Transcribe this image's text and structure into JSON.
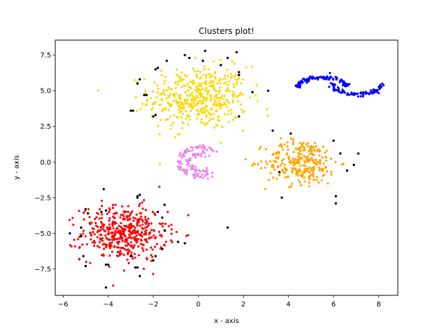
{
  "chart_data": {
    "type": "scatter",
    "title": "Clusters plot!",
    "xlabel": "x - axis",
    "ylabel": "y - axis",
    "xlim": [
      -6.35,
      8.85
    ],
    "ylim": [
      -9.35,
      8.55
    ],
    "xticks": [
      -6,
      -4,
      -2,
      0,
      2,
      4,
      6,
      8
    ],
    "xtick_labels": [
      "−6",
      "−4",
      "−2",
      "0",
      "2",
      "4",
      "6",
      "8"
    ],
    "yticks": [
      -7.5,
      -5.0,
      -2.5,
      0.0,
      2.5,
      5.0,
      7.5
    ],
    "ytick_labels": [
      "−7.5",
      "−5.0",
      "−2.5",
      "0.0",
      "2.5",
      "5.0",
      "7.5"
    ],
    "grid": false,
    "clusters": [
      {
        "shape": "blob",
        "color": "#ffd700",
        "center": [
          0.0,
          4.5
        ],
        "spread": [
          1.1,
          1.1
        ],
        "count": 450
      },
      {
        "shape": "blob",
        "color": "#ff0000",
        "center": [
          -3.3,
          -5.0
        ],
        "spread": [
          0.95,
          0.95
        ],
        "count": 450
      },
      {
        "shape": "blob",
        "color": "#ffa500",
        "center": [
          4.6,
          0.0
        ],
        "spread": [
          0.8,
          0.8
        ],
        "count": 280
      },
      {
        "shape": "moons",
        "color": "#0000ff",
        "center": [
          6.5,
          5.3
        ],
        "count": 200
      },
      {
        "shape": "circle",
        "color": "#ee82ee",
        "center": [
          0.0,
          0.0
        ],
        "count": 130
      }
    ],
    "noise": {
      "color": "#000000",
      "points": [
        [
          -2.6,
          5.8
        ],
        [
          -2.7,
          5.5
        ],
        [
          -2.4,
          4.7
        ],
        [
          -2.3,
          4.7
        ],
        [
          -2.9,
          3.6
        ],
        [
          -3.0,
          3.6
        ],
        [
          -2.0,
          3.2
        ],
        [
          -1.9,
          3.3
        ],
        [
          -1.9,
          6.5
        ],
        [
          -1.8,
          6.6
        ],
        [
          -1.4,
          7.1
        ],
        [
          -0.6,
          7.5
        ],
        [
          -0.4,
          7.3
        ],
        [
          0.2,
          7.1
        ],
        [
          0.3,
          7.8
        ],
        [
          1.0,
          6.8
        ],
        [
          1.3,
          7.3
        ],
        [
          1.7,
          7.7
        ],
        [
          1.8,
          6.3
        ],
        [
          1.8,
          6.1
        ],
        [
          1.8,
          3.2
        ],
        [
          2.4,
          4.9
        ],
        [
          3.1,
          5.0
        ],
        [
          3.3,
          2.2
        ],
        [
          4.1,
          2.0
        ],
        [
          6.0,
          1.5
        ],
        [
          6.3,
          0.6
        ],
        [
          6.6,
          -0.6
        ],
        [
          7.1,
          0.6
        ],
        [
          6.1,
          -2.4
        ],
        [
          6.1,
          -2.9
        ],
        [
          3.7,
          -2.5
        ],
        [
          -4.2,
          -1.9
        ],
        [
          -4.3,
          -3.5
        ],
        [
          -4.1,
          -3.4
        ],
        [
          -5.7,
          -5.0
        ],
        [
          -5.2,
          -5.2
        ],
        [
          -5.2,
          -4.6
        ],
        [
          -5.0,
          -3.3
        ],
        [
          -4.9,
          -3.6
        ],
        [
          -5.1,
          -6.6
        ],
        [
          -5.0,
          -7.3
        ],
        [
          -4.1,
          -7.2
        ],
        [
          -4.0,
          -7.2
        ],
        [
          -4.1,
          -8.8
        ],
        [
          -3.0,
          -6.6
        ],
        [
          -2.8,
          -7.4
        ],
        [
          -2.7,
          -7.4
        ],
        [
          -2.6,
          -8.0
        ],
        [
          -2.7,
          -2.5
        ],
        [
          -2.7,
          -2.4
        ],
        [
          -2.6,
          -2.3
        ],
        [
          -1.8,
          -3.5
        ],
        [
          -1.6,
          -3.9
        ],
        [
          -1.5,
          -3.0
        ],
        [
          -2.0,
          -6.9
        ],
        [
          -1.9,
          -6.6
        ],
        [
          -1.6,
          -6.1
        ],
        [
          -1.5,
          -4.8
        ],
        [
          -0.9,
          -5.6
        ],
        [
          -0.6,
          -5.7
        ],
        [
          1.3,
          -4.6
        ],
        [
          3.6,
          -0.7
        ],
        [
          6.9,
          -0.2
        ]
      ]
    }
  }
}
